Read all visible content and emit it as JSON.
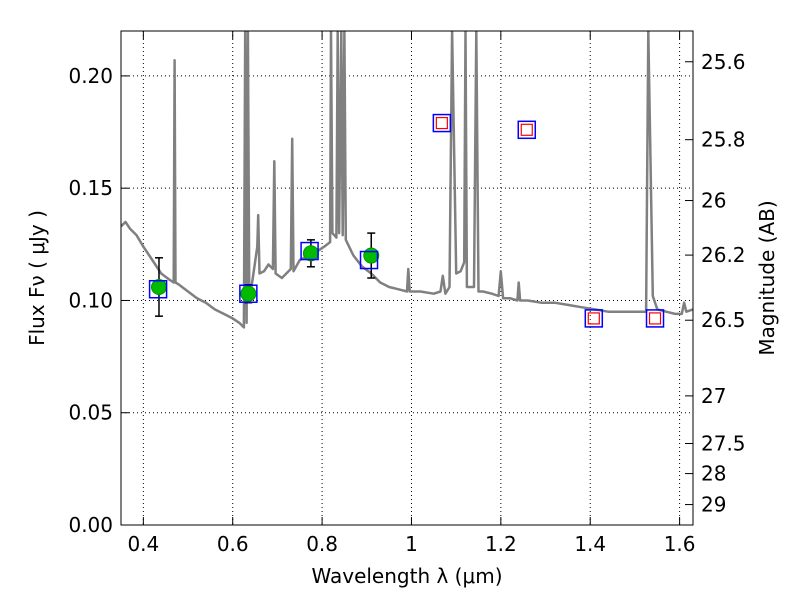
{
  "chart_data": {
    "type": "scatter",
    "xlabel": "Wavelength  λ (μm)",
    "ylabel": "Flux  Fν  ( μJy )",
    "ylabel_right": "Magnitude (AB)",
    "xlim": [
      0.35,
      1.63
    ],
    "ylim": [
      0.0,
      0.22
    ],
    "x_ticks": [
      0.4,
      0.6,
      0.8,
      1.0,
      1.2,
      1.4,
      1.6
    ],
    "x_tick_labels": [
      "0.4",
      "0.6",
      "0.8",
      "1",
      "1.2",
      "1.4",
      "1.6"
    ],
    "y_ticks": [
      0.0,
      0.05,
      0.1,
      0.15,
      0.2
    ],
    "y_tick_labels": [
      "0.00",
      "0.05",
      "0.10",
      "0.15",
      "0.20"
    ],
    "right_ticks": [
      {
        "label": "25.6",
        "flux": 0.2063
      },
      {
        "label": "25.8",
        "flux": 0.1716
      },
      {
        "label": "26",
        "flux": 0.1445
      },
      {
        "label": "26.2",
        "flux": 0.1202
      },
      {
        "label": "26.5",
        "flux": 0.0912
      },
      {
        "label": "27",
        "flux": 0.0575
      },
      {
        "label": "27.5",
        "flux": 0.0363
      },
      {
        "label": "28",
        "flux": 0.0229
      },
      {
        "label": "29",
        "flux": 0.0091
      }
    ],
    "grid": true,
    "grid_style": "dotted",
    "observed_points": [
      {
        "x": 0.435,
        "y": 0.106,
        "err": 0.013
      },
      {
        "x": 0.635,
        "y": 0.103,
        "err": 0.004
      },
      {
        "x": 0.775,
        "y": 0.121,
        "err": 0.006
      },
      {
        "x": 0.91,
        "y": 0.12,
        "err": 0.01
      }
    ],
    "model_boxes_blue": [
      {
        "x": 0.433,
        "y": 0.105
      },
      {
        "x": 0.635,
        "y": 0.103
      },
      {
        "x": 0.772,
        "y": 0.122
      },
      {
        "x": 0.905,
        "y": 0.118
      },
      {
        "x": 1.068,
        "y": 0.179
      },
      {
        "x": 1.258,
        "y": 0.176
      },
      {
        "x": 1.408,
        "y": 0.092
      },
      {
        "x": 1.545,
        "y": 0.092
      }
    ],
    "model_boxes_red": [
      {
        "x": 1.068,
        "y": 0.179
      },
      {
        "x": 1.258,
        "y": 0.176
      },
      {
        "x": 1.408,
        "y": 0.092
      },
      {
        "x": 1.545,
        "y": 0.092
      }
    ],
    "sed_curve": [
      [
        0.35,
        0.133
      ],
      [
        0.36,
        0.135
      ],
      [
        0.37,
        0.132
      ],
      [
        0.385,
        0.129
      ],
      [
        0.4,
        0.124
      ],
      [
        0.42,
        0.118
      ],
      [
        0.44,
        0.112
      ],
      [
        0.46,
        0.109
      ],
      [
        0.468,
        0.108
      ],
      [
        0.47,
        0.207
      ],
      [
        0.472,
        0.108
      ],
      [
        0.48,
        0.107
      ],
      [
        0.5,
        0.104
      ],
      [
        0.52,
        0.101
      ],
      [
        0.54,
        0.099
      ],
      [
        0.56,
        0.096
      ],
      [
        0.58,
        0.094
      ],
      [
        0.6,
        0.092
      ],
      [
        0.615,
        0.09
      ],
      [
        0.625,
        0.088
      ],
      [
        0.628,
        0.22
      ],
      [
        0.631,
        0.09
      ],
      [
        0.634,
        0.22
      ],
      [
        0.637,
        0.1
      ],
      [
        0.645,
        0.11
      ],
      [
        0.655,
        0.124
      ],
      [
        0.657,
        0.138
      ],
      [
        0.66,
        0.112
      ],
      [
        0.67,
        0.113
      ],
      [
        0.68,
        0.116
      ],
      [
        0.69,
        0.114
      ],
      [
        0.693,
        0.162
      ],
      [
        0.696,
        0.112
      ],
      [
        0.71,
        0.11
      ],
      [
        0.72,
        0.112
      ],
      [
        0.73,
        0.114
      ],
      [
        0.733,
        0.172
      ],
      [
        0.736,
        0.113
      ],
      [
        0.75,
        0.118
      ],
      [
        0.77,
        0.12
      ],
      [
        0.79,
        0.122
      ],
      [
        0.805,
        0.124
      ],
      [
        0.818,
        0.126
      ],
      [
        0.82,
        0.22
      ],
      [
        0.823,
        0.13
      ],
      [
        0.832,
        0.128
      ],
      [
        0.835,
        0.22
      ],
      [
        0.838,
        0.13
      ],
      [
        0.843,
        0.22
      ],
      [
        0.846,
        0.129
      ],
      [
        0.85,
        0.22
      ],
      [
        0.853,
        0.127
      ],
      [
        0.87,
        0.12
      ],
      [
        0.89,
        0.115
      ],
      [
        0.91,
        0.112
      ],
      [
        0.93,
        0.108
      ],
      [
        0.95,
        0.106
      ],
      [
        0.97,
        0.105
      ],
      [
        0.99,
        0.104
      ],
      [
        0.993,
        0.114
      ],
      [
        0.996,
        0.104
      ],
      [
        1.02,
        0.104
      ],
      [
        1.05,
        0.103
      ],
      [
        1.065,
        0.104
      ],
      [
        1.07,
        0.111
      ],
      [
        1.076,
        0.103
      ],
      [
        1.085,
        0.106
      ],
      [
        1.091,
        0.22
      ],
      [
        1.1,
        0.112
      ],
      [
        1.11,
        0.113
      ],
      [
        1.118,
        0.117
      ],
      [
        1.121,
        0.22
      ],
      [
        1.124,
        0.106
      ],
      [
        1.14,
        0.106
      ],
      [
        1.145,
        0.22
      ],
      [
        1.15,
        0.104
      ],
      [
        1.16,
        0.104
      ],
      [
        1.18,
        0.103
      ],
      [
        1.195,
        0.102
      ],
      [
        1.2,
        0.113
      ],
      [
        1.205,
        0.101
      ],
      [
        1.22,
        0.101
      ],
      [
        1.237,
        0.1
      ],
      [
        1.24,
        0.108
      ],
      [
        1.243,
        0.1
      ],
      [
        1.26,
        0.1
      ],
      [
        1.29,
        0.099
      ],
      [
        1.32,
        0.099
      ],
      [
        1.35,
        0.098
      ],
      [
        1.38,
        0.097
      ],
      [
        1.41,
        0.096
      ],
      [
        1.44,
        0.095
      ],
      [
        1.47,
        0.095
      ],
      [
        1.5,
        0.095
      ],
      [
        1.525,
        0.095
      ],
      [
        1.53,
        0.22
      ],
      [
        1.54,
        0.102
      ],
      [
        1.55,
        0.096
      ],
      [
        1.57,
        0.095
      ],
      [
        1.59,
        0.094
      ],
      [
        1.605,
        0.094
      ],
      [
        1.61,
        0.099
      ],
      [
        1.615,
        0.095
      ],
      [
        1.63,
        0.096
      ]
    ]
  }
}
